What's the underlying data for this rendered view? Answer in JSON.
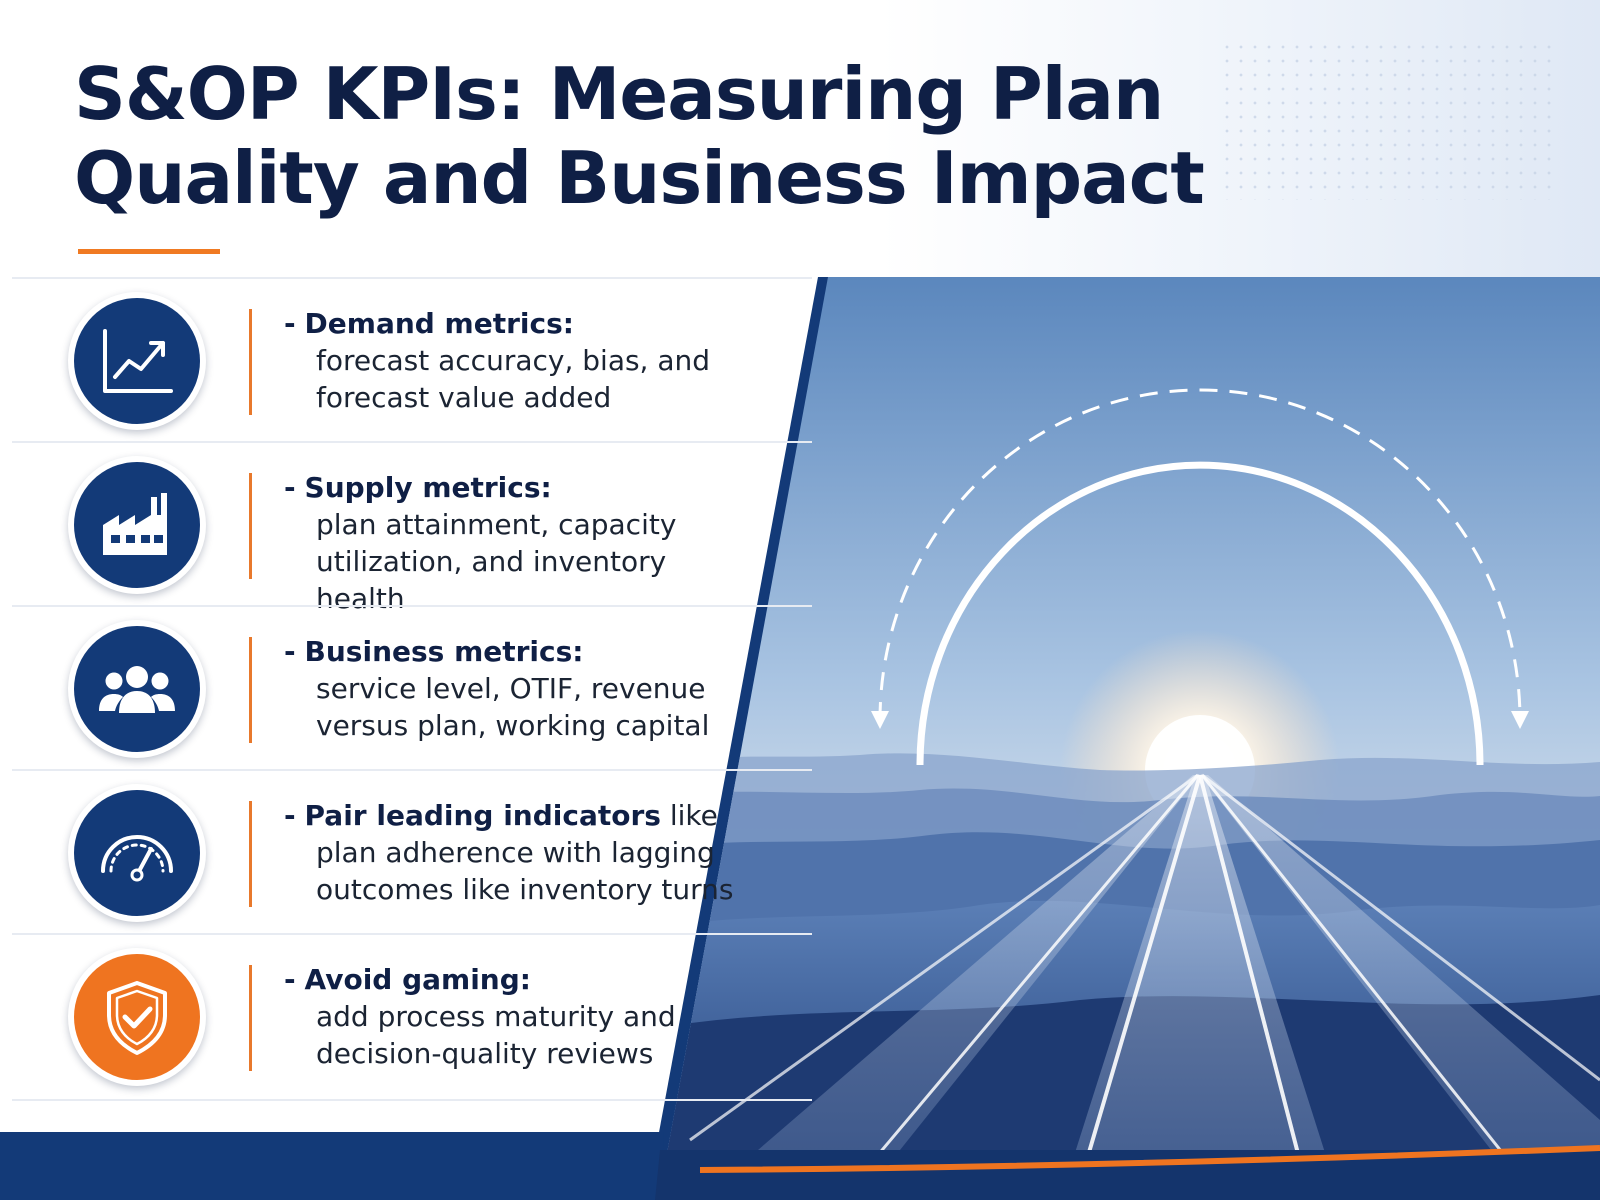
{
  "title": {
    "line1": "S&OP KPIs: Measuring Plan",
    "line2": "Quality and Business Impact"
  },
  "colors": {
    "navy": "#133a78",
    "title": "#0f1f45",
    "accent_orange": "#ef7420"
  },
  "items": [
    {
      "icon": "trend-chart-icon",
      "dash": "-",
      "heading": "Demand metrics:",
      "tail": "",
      "lines": [
        "forecast accuracy, bias, and",
        "forecast value added"
      ]
    },
    {
      "icon": "factory-icon",
      "dash": "-",
      "heading": "Supply metrics:",
      "tail": "",
      "lines": [
        "plan attainment, capacity",
        "utilization, and inventory health"
      ]
    },
    {
      "icon": "people-group-icon",
      "dash": "-",
      "heading": "Business metrics:",
      "tail": "",
      "lines": [
        "service level, OTIF, revenue",
        "versus plan, working capital"
      ]
    },
    {
      "icon": "speedometer-icon",
      "dash": "-",
      "heading": "Pair leading indicators",
      "tail": " like",
      "lines": [
        "plan adherence with lagging",
        "outcomes like inventory turns"
      ]
    },
    {
      "icon": "shield-check-icon",
      "dash": "-",
      "heading": "Avoid gaming:",
      "tail": "",
      "lines": [
        "add process maturity and",
        "decision-quality reviews"
      ]
    }
  ]
}
